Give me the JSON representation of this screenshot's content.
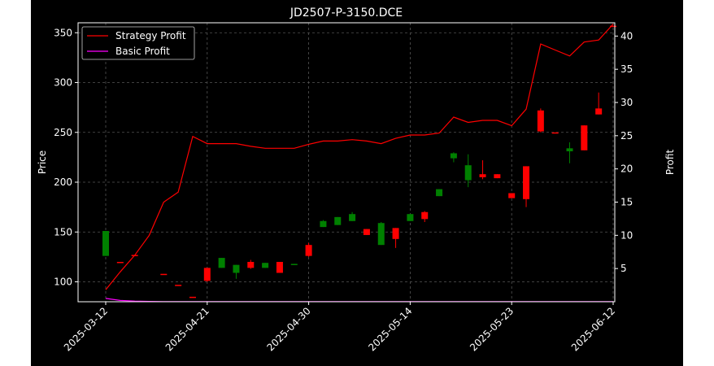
{
  "chart_data": {
    "type": "candlestick+line",
    "title": "JD2507-P-3150.DCE",
    "ylabel_left": "Price",
    "ylabel_right": "Profit",
    "ylim_left": [
      80,
      360
    ],
    "ylim_right": [
      0,
      42
    ],
    "yticks_left": [
      100,
      150,
      200,
      250,
      300,
      350
    ],
    "yticks_right": [
      5,
      10,
      15,
      20,
      25,
      30,
      35,
      40
    ],
    "xtick_labels": [
      {
        "i": 0,
        "label": "2025-03-12"
      },
      {
        "i": 7,
        "label": "2025-04-21"
      },
      {
        "i": 14,
        "label": "2025-04-30"
      },
      {
        "i": 21,
        "label": "2025-05-14"
      },
      {
        "i": 28,
        "label": "2025-05-23"
      },
      {
        "i": 35,
        "label": "2025-06-12"
      }
    ],
    "grid": true,
    "legend": {
      "position": "top-left",
      "items": [
        {
          "label": "Strategy Profit",
          "color": "#ff0000"
        },
        {
          "label": "Basic Profit",
          "color": "#ff00ff"
        }
      ]
    },
    "colors": {
      "up": "#008000",
      "down": "#ff0000",
      "strategy": "#ff0000",
      "basic": "#ff00ff"
    },
    "candles": [
      {
        "o": 126,
        "h": 151,
        "l": 126,
        "c": 151
      },
      {
        "o": 120,
        "h": 120,
        "l": 120,
        "c": 120
      },
      {
        "o": 127,
        "h": 127,
        "l": 127,
        "c": 127
      },
      {
        "o": null,
        "h": null,
        "l": null,
        "c": null
      },
      {
        "o": 108,
        "h": 108,
        "l": 108,
        "c": 108
      },
      {
        "o": 97,
        "h": 97,
        "l": 97,
        "c": 97
      },
      {
        "o": 85,
        "h": 85,
        "l": 85,
        "c": 85
      },
      {
        "o": 114,
        "h": 114,
        "l": 100,
        "c": 101
      },
      {
        "o": 114,
        "h": 124,
        "l": 114,
        "c": 124
      },
      {
        "o": 109,
        "h": 117,
        "l": 103,
        "c": 117
      },
      {
        "o": 120,
        "h": 122,
        "l": 113,
        "c": 114
      },
      {
        "o": 114,
        "h": 119,
        "l": 114,
        "c": 119
      },
      {
        "o": 120,
        "h": 120,
        "l": 109,
        "c": 109
      },
      {
        "o": 117,
        "h": 118,
        "l": 117,
        "c": 118
      },
      {
        "o": 137,
        "h": 139,
        "l": 125,
        "c": 126
      },
      {
        "o": 155,
        "h": 162,
        "l": 155,
        "c": 161
      },
      {
        "o": 157,
        "h": 165,
        "l": 157,
        "c": 165
      },
      {
        "o": 161,
        "h": 170,
        "l": 161,
        "c": 168
      },
      {
        "o": 153,
        "h": 153,
        "l": 147,
        "c": 147
      },
      {
        "o": 137,
        "h": 160,
        "l": 137,
        "c": 159
      },
      {
        "o": 154,
        "h": 154,
        "l": 134,
        "c": 143
      },
      {
        "o": 161,
        "h": 168,
        "l": 161,
        "c": 168
      },
      {
        "o": 170,
        "h": 171,
        "l": 160,
        "c": 163
      },
      {
        "o": 186,
        "h": 193,
        "l": 186,
        "c": 193
      },
      {
        "o": 224,
        "h": 230,
        "l": 220,
        "c": 229
      },
      {
        "o": 202,
        "h": 228,
        "l": 195,
        "c": 217
      },
      {
        "o": 208,
        "h": 222,
        "l": 203,
        "c": 205
      },
      {
        "o": 208,
        "h": 208,
        "l": 204,
        "c": 204
      },
      {
        "o": 189,
        "h": 189,
        "l": 184,
        "c": 184
      },
      {
        "o": 216,
        "h": 216,
        "l": 175,
        "c": 183
      },
      {
        "o": 272,
        "h": 274,
        "l": 250,
        "c": 251
      },
      {
        "o": 250,
        "h": 250,
        "l": 250,
        "c": 250
      },
      {
        "o": 231,
        "h": 240,
        "l": 219,
        "c": 234
      },
      {
        "o": 257,
        "h": 257,
        "l": 232,
        "c": 232
      },
      {
        "o": 274,
        "h": 290,
        "l": 268,
        "c": 268
      },
      {
        "o": 357,
        "h": 357,
        "l": 357,
        "c": 357
      }
    ],
    "strategy_profit": [
      1.8,
      4.5,
      7.0,
      10.0,
      15.0,
      16.5,
      24.9,
      23.8,
      23.8,
      23.8,
      23.4,
      23.1,
      23.1,
      23.1,
      23.7,
      24.2,
      24.2,
      24.4,
      24.2,
      23.8,
      24.6,
      25.1,
      25.1,
      25.4,
      27.8,
      27.0,
      27.3,
      27.3,
      26.5,
      29.0,
      38.8,
      37.9,
      37.0,
      39.1,
      39.4,
      41.8
    ],
    "basic_profit": [
      0.5,
      0.2,
      0.1,
      0.05,
      0.02,
      0.01,
      0.01,
      0.01,
      0.01,
      0.01,
      0.01,
      0.01,
      0.01,
      0.01,
      0.01,
      0.01,
      0.01,
      0.01,
      0.01,
      0.01,
      0.01,
      0.01,
      0.01,
      0.01,
      0.01,
      0.01,
      0.01,
      0.01,
      0.01,
      0.01,
      0.01,
      0.01,
      0.01,
      0.01,
      0.01,
      0.01
    ]
  }
}
